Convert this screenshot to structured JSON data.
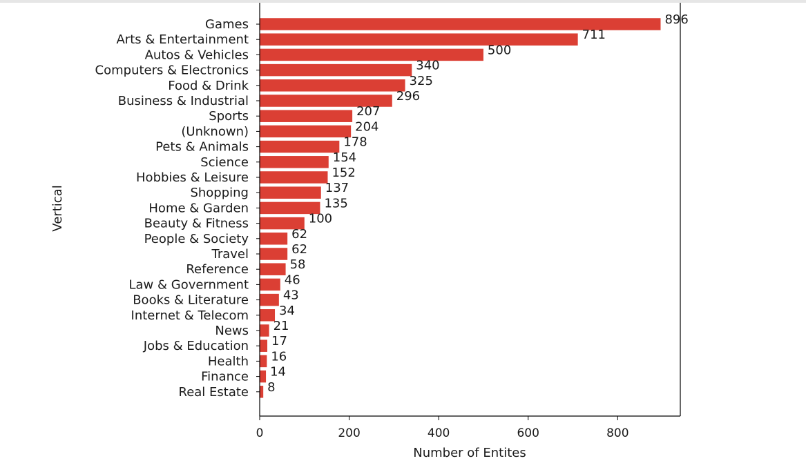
{
  "chart_data": {
    "type": "bar",
    "orientation": "horizontal",
    "categories": [
      "Games",
      "Arts & Entertainment",
      "Autos & Vehicles",
      "Computers & Electronics",
      "Food & Drink",
      "Business & Industrial",
      "Sports",
      "(Unknown)",
      "Pets & Animals",
      "Science",
      "Hobbies & Leisure",
      "Shopping",
      "Home & Garden",
      "Beauty & Fitness",
      "People & Society",
      "Travel",
      "Reference",
      "Law & Government",
      "Books & Literature",
      "Internet & Telecom",
      "News",
      "Jobs & Education",
      "Health",
      "Finance",
      "Real Estate"
    ],
    "values": [
      896,
      711,
      500,
      340,
      325,
      296,
      207,
      204,
      178,
      154,
      152,
      137,
      135,
      100,
      62,
      62,
      58,
      46,
      43,
      34,
      21,
      17,
      16,
      14,
      8
    ],
    "title": "",
    "xlabel": "Number of Entites",
    "ylabel": "Vertical",
    "xlim": [
      0,
      940
    ],
    "xticks": [
      0,
      200,
      400,
      600,
      800
    ],
    "grid": false,
    "bar_color": "#db3f34"
  }
}
